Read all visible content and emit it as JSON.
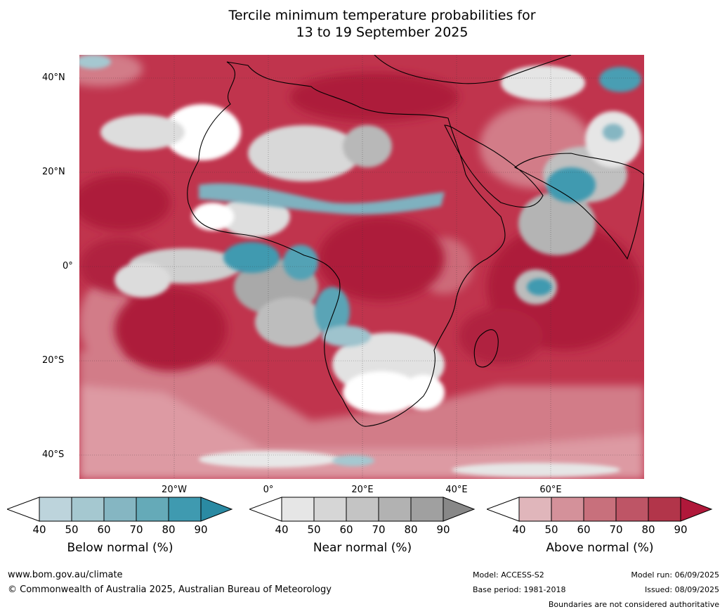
{
  "title_line1": "Tercile minimum temperature probabilities for",
  "title_line2": "13 to 19 September 2025",
  "lat_labels": [
    "40°N",
    "20°N",
    "0°",
    "20°S",
    "40°S"
  ],
  "lon_labels": [
    "20°W",
    "0°",
    "20°E",
    "40°E",
    "60°E"
  ],
  "colorbars": [
    {
      "label": "Below normal (%)",
      "ticks": [
        "40",
        "50",
        "60",
        "70",
        "80",
        "90"
      ],
      "colors": [
        "#bdd4dc",
        "#a5c8d0",
        "#85b6c2",
        "#65aab8",
        "#3f9ab0",
        "#2a8aa3"
      ]
    },
    {
      "label": "Near normal (%)",
      "ticks": [
        "40",
        "50",
        "60",
        "70",
        "80",
        "90"
      ],
      "colors": [
        "#e6e6e6",
        "#d6d6d6",
        "#c4c4c4",
        "#b2b2b2",
        "#a0a0a0",
        "#888888"
      ]
    },
    {
      "label": "Above normal (%)",
      "ticks": [
        "40",
        "50",
        "60",
        "70",
        "80",
        "90"
      ],
      "colors": [
        "#e0b6bb",
        "#d4919a",
        "#c8707c",
        "#be5566",
        "#b2354a",
        "#b0183a"
      ]
    }
  ],
  "footer": {
    "url": "www.bom.gov.au/climate",
    "copyright": "© Commonwealth of Australia 2025, Australian Bureau of Meteorology",
    "model": "Model: ACCESS-S2",
    "base_period": "Base period: 1981-2018",
    "model_run": "Model run: 06/09/2025",
    "issued": "Issued: 08/09/2025",
    "disclaimer": "Boundaries are not considered authoritative"
  }
}
